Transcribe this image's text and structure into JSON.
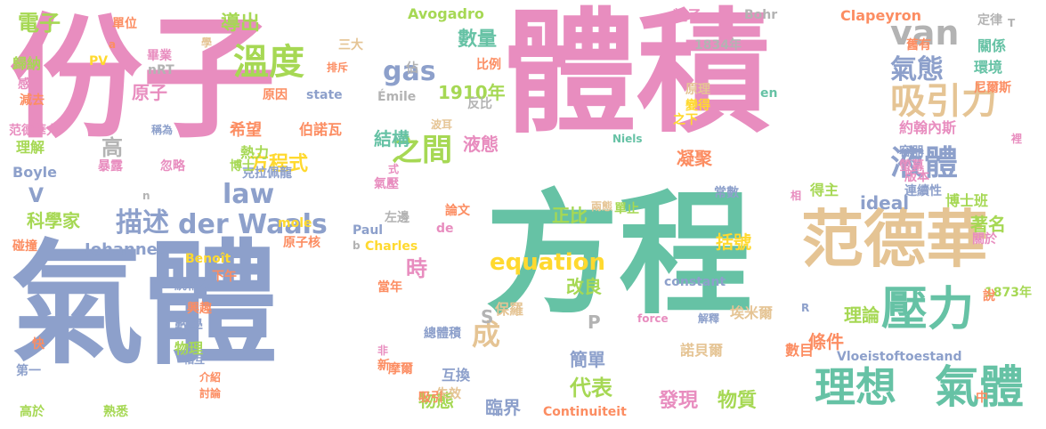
{
  "palette": {
    "pink": "#e88dbf",
    "green": "#66c2a5",
    "blue": "#8da0cb",
    "tan": "#e5c494",
    "lime": "#a6d854",
    "yellow": "#ffd92f",
    "orange": "#fc8d62",
    "grey": "#b3b3b3"
  },
  "words": [
    "份子",
    "體積",
    "氣體",
    "方程",
    "范德華",
    "壓力",
    "理想",
    "氣體",
    "吸引力",
    "液體",
    "溫度",
    "van",
    "氣態",
    "der Waals",
    "描述",
    "equation",
    "law",
    "gas",
    "之間",
    "成",
    "電子",
    "導出",
    "數量",
    "原子",
    "1910年",
    "結構",
    "液態",
    "方程式",
    "條件",
    "理論",
    "著名",
    "ideal",
    "正比",
    "時",
    "改良",
    "括號",
    "發現",
    "物質",
    "臨界",
    "代表",
    "簡單",
    "物態",
    "科學家",
    "希望",
    "伯諾瓦",
    "凝聚",
    "約翰內斯",
    "得主",
    "博士班",
    "Johannes",
    "Avogadro",
    "Clapeyron",
    "Bohr",
    "粒子",
    "1834年",
    "比例",
    "三大",
    "歸納",
    "畢業",
    "學",
    "PV",
    "nRT",
    "state",
    "Émile",
    "原因",
    "反比",
    "原理",
    "變得",
    "之下",
    "Niels",
    "容器",
    "螢幕",
    "關係",
    "環境",
    "尼爾斯",
    "定律",
    "舊有",
    "en",
    "范德華力",
    "稱為",
    "理解",
    "熱力",
    "克拉佩龍",
    "博士",
    "連續性",
    "版本",
    "Boyle",
    "暴露",
    "忽略",
    "碰撞",
    "1873年",
    "constant",
    "force",
    "保羅",
    "總體積",
    "埃米爾",
    "諾貝爾",
    "數目",
    "Vloeistoftoestand",
    "Continuiteit",
    "互換",
    "失效",
    "吸引",
    "摩爾",
    "興趣",
    "數學",
    "物理",
    "統稱為",
    "下午",
    "當年",
    "Charles",
    "Benoît",
    "Paul",
    "mole",
    "左邊",
    "原子核",
    "論文",
    "de",
    "兩態",
    "單止",
    "減去",
    "感",
    "單位",
    "排斥",
    "佔",
    "波耳",
    "常數",
    "關於",
    "裡",
    "相",
    "氣壓",
    "式",
    "第一",
    "快",
    "高於",
    "熟悉",
    "介紹",
    "討論",
    "相互",
    "非",
    "新",
    "解釋",
    "說",
    "中",
    "高",
    "V",
    "S",
    "P",
    "a",
    "b",
    "n",
    "R",
    "T"
  ]
}
